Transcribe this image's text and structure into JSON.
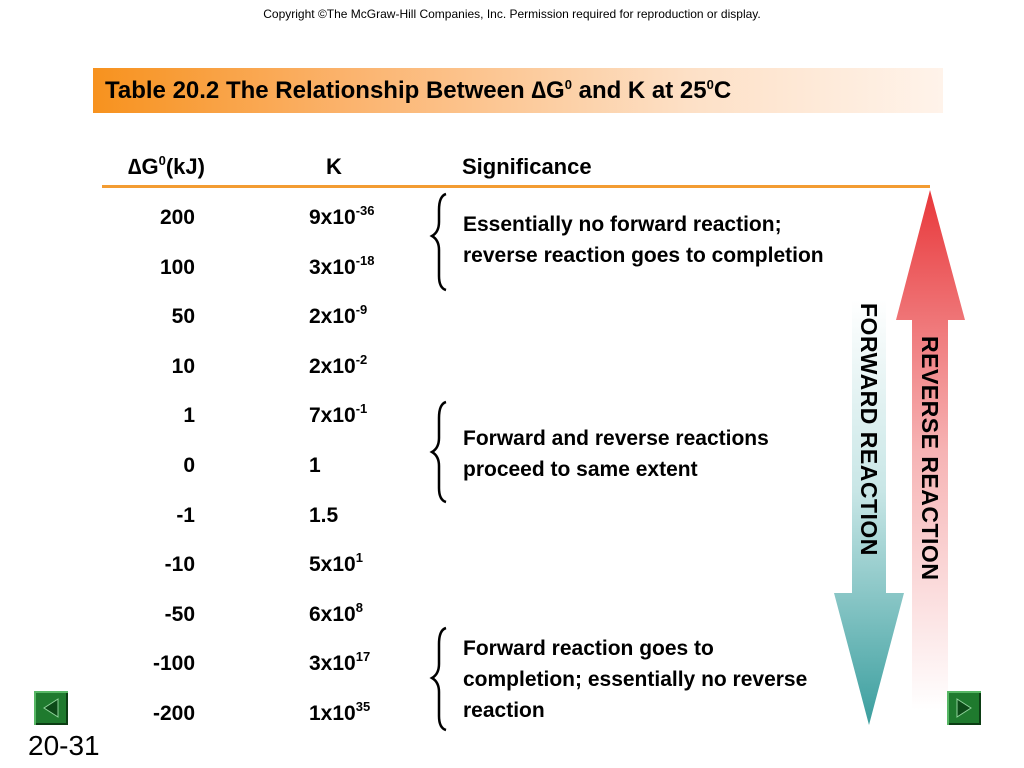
{
  "header": {
    "copyright": "Copyright ©The McGraw-Hill Companies, Inc.  Permission required for reproduction or display.",
    "title_prefix": "Table 20.2   The Relationship Between ",
    "title_delta": "∆",
    "title_G": "G",
    "title_sup0": "0",
    "title_mid": " and K at 25",
    "title_sup1": "0",
    "title_suffix": "C"
  },
  "columns": {
    "dg_delta": "∆",
    "dg_G": "G",
    "dg_sup": "0",
    "dg_unit": "(kJ)",
    "k": "K",
    "significance": "Significance"
  },
  "rows": [
    {
      "dg": "200",
      "k_base": "9x10",
      "k_exp": "-36"
    },
    {
      "dg": "100",
      "k_base": "3x10",
      "k_exp": "-18"
    },
    {
      "dg": "50",
      "k_base": "2x10",
      "k_exp": "-9"
    },
    {
      "dg": "10",
      "k_base": "2x10",
      "k_exp": "-2"
    },
    {
      "dg": "1",
      "k_base": "7x10",
      "k_exp": "-1"
    },
    {
      "dg": "0",
      "k_base": "1",
      "k_exp": ""
    },
    {
      "dg": "-1",
      "k_base": "1.5",
      "k_exp": ""
    },
    {
      "dg": "-10",
      "k_base": "5x10",
      "k_exp": "1"
    },
    {
      "dg": "-50",
      "k_base": "6x10",
      "k_exp": "8"
    },
    {
      "dg": "-100",
      "k_base": "3x10",
      "k_exp": "17"
    },
    {
      "dg": "-200",
      "k_base": "1x10",
      "k_exp": "35"
    }
  ],
  "significance": [
    {
      "line1": "Essentially no forward reaction;",
      "line2": "reverse reaction goes to completion",
      "line3": ""
    },
    {
      "line1": "Forward and reverse reactions",
      "line2": "proceed to same extent",
      "line3": ""
    },
    {
      "line1": "Forward reaction goes to",
      "line2": "completion; essentially no reverse",
      "line3": "reaction"
    }
  ],
  "arrows": {
    "forward_label": "FORWARD REACTION",
    "reverse_label": "REVERSE REACTION",
    "forward_color": "#3a9e9e",
    "reverse_color": "#e8373a"
  },
  "nav": {
    "back_icon": "triangle-left-icon",
    "forward_icon": "triangle-right-icon",
    "button_color": "#1f7a2e"
  },
  "footer": {
    "slide_number": "20-31"
  }
}
